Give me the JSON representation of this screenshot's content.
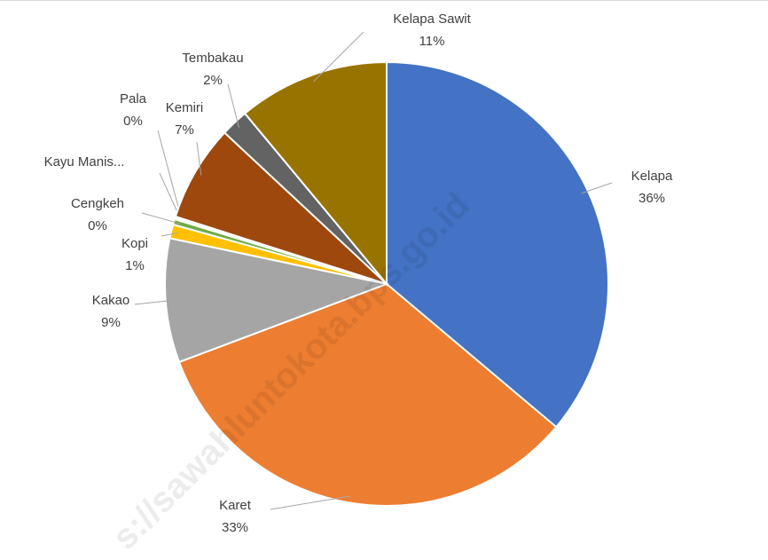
{
  "chart_data": {
    "type": "pie",
    "categories": [
      "Kelapa",
      "Karet",
      "Kakao",
      "Kopi",
      "Cengkeh",
      "Kayu Manis...",
      "Pala",
      "Kemiri",
      "Tembakau",
      "Kelapa Sawit"
    ],
    "values": [
      36,
      33,
      9,
      1,
      0.4,
      0.1,
      0.1,
      7,
      2,
      11
    ],
    "value_labels": [
      "36%",
      "33%",
      "9%",
      "1%",
      "0%",
      null,
      "0%",
      "7%",
      "2%",
      "11%"
    ],
    "colors": [
      "#4472c4",
      "#ed7d31",
      "#a5a5a5",
      "#ffc000",
      "#70ad47",
      "#264478",
      "#5b9bd5",
      "#9e480e",
      "#636363",
      "#997300"
    ],
    "watermark": "s://sawahluntokota.bps.go.id"
  }
}
